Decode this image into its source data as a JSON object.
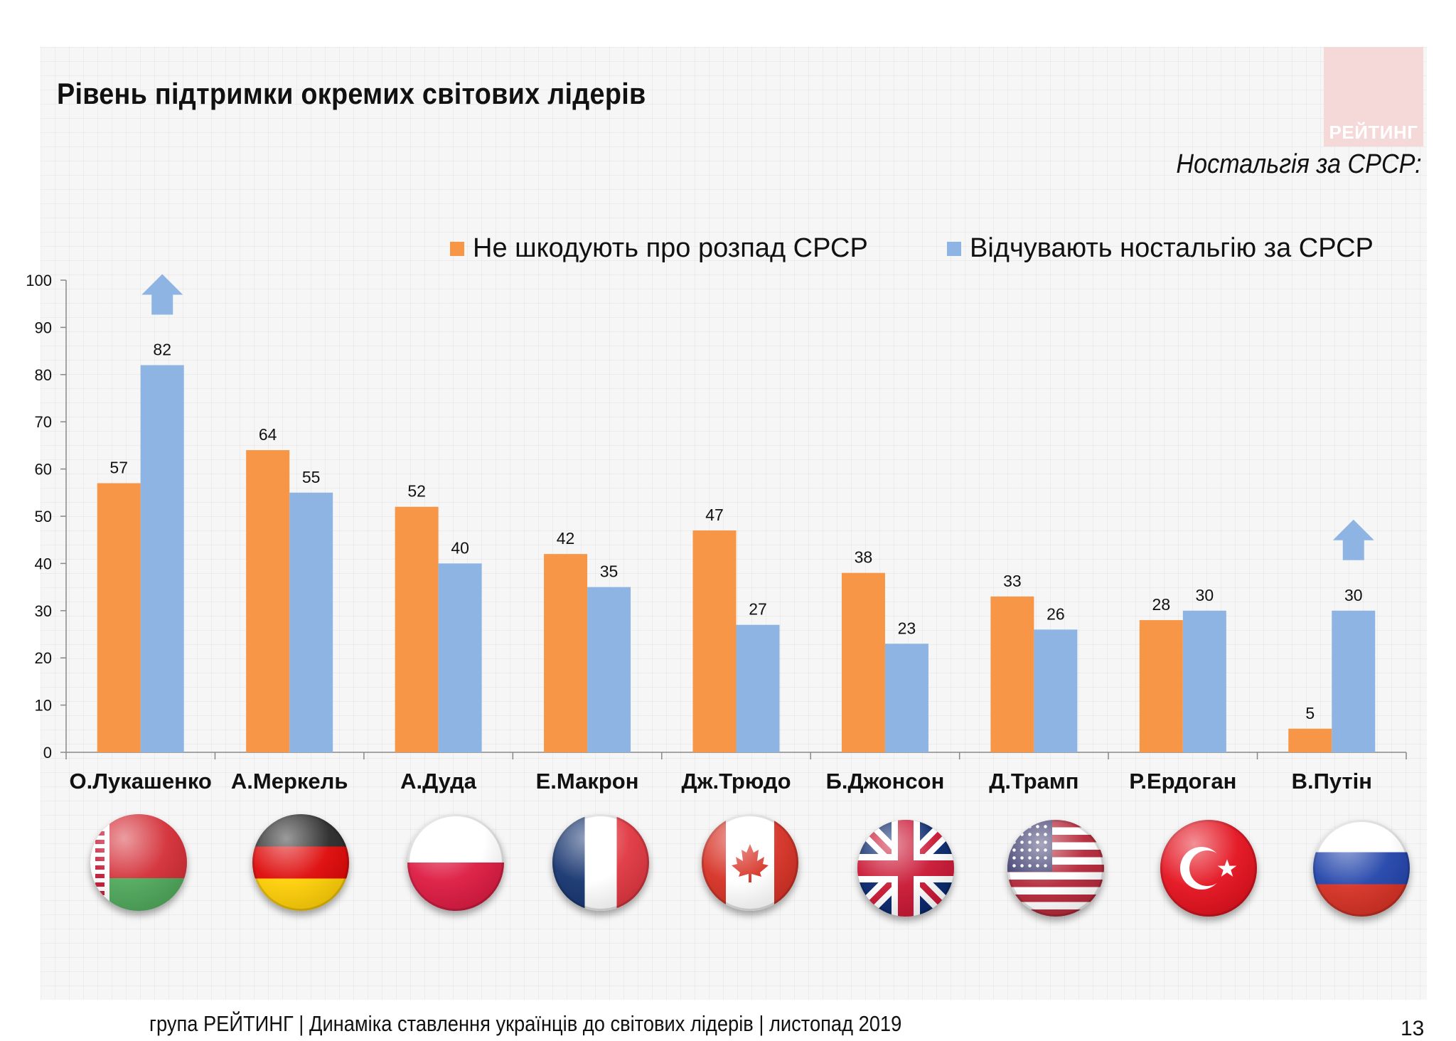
{
  "slide": {
    "title": "Рівень підтримки окремих світових лідерів",
    "logo_text": "РЕЙТИНГ",
    "subtitle": "Ностальгія за СРСР:",
    "footer": "група РЕЙТИНГ | Динаміка ставлення українців до світових лідерів  | листопад 2019",
    "page_number": "13"
  },
  "colors": {
    "orange": "#f79646",
    "blue": "#8eb4e3",
    "arrow": "#8eb4e3"
  },
  "icons": [
    "up-arrow-icon",
    "flag-belarus-icon",
    "flag-germany-icon",
    "flag-poland-icon",
    "flag-france-icon",
    "flag-canada-icon",
    "flag-uk-icon",
    "flag-usa-icon",
    "flag-turkey-icon",
    "flag-russia-icon"
  ],
  "chart_data": {
    "type": "bar",
    "categories": [
      "О.Лукашенко",
      "А.Меркель",
      "А.Дуда",
      "Е.Макрон",
      "Дж.Трюдо",
      "Б.Джонсон",
      "Д.Трамп",
      "Р.Ердоган",
      "В.Путін"
    ],
    "series": [
      {
        "name": "Не шкодують про розпад СРСР",
        "color": "#f79646",
        "values": [
          57,
          64,
          52,
          42,
          47,
          38,
          33,
          28,
          5
        ]
      },
      {
        "name": "Відчувають ностальгію за СРСР",
        "color": "#8eb4e3",
        "values": [
          82,
          55,
          40,
          35,
          27,
          23,
          26,
          30,
          30
        ]
      }
    ],
    "ylim": [
      0,
      100
    ],
    "yticks": [
      0,
      10,
      20,
      30,
      40,
      50,
      60,
      70,
      80,
      90,
      100
    ],
    "grid": false,
    "legend": "top",
    "highlighted_categories": [
      "О.Лукашенко",
      "В.Путін"
    ]
  }
}
